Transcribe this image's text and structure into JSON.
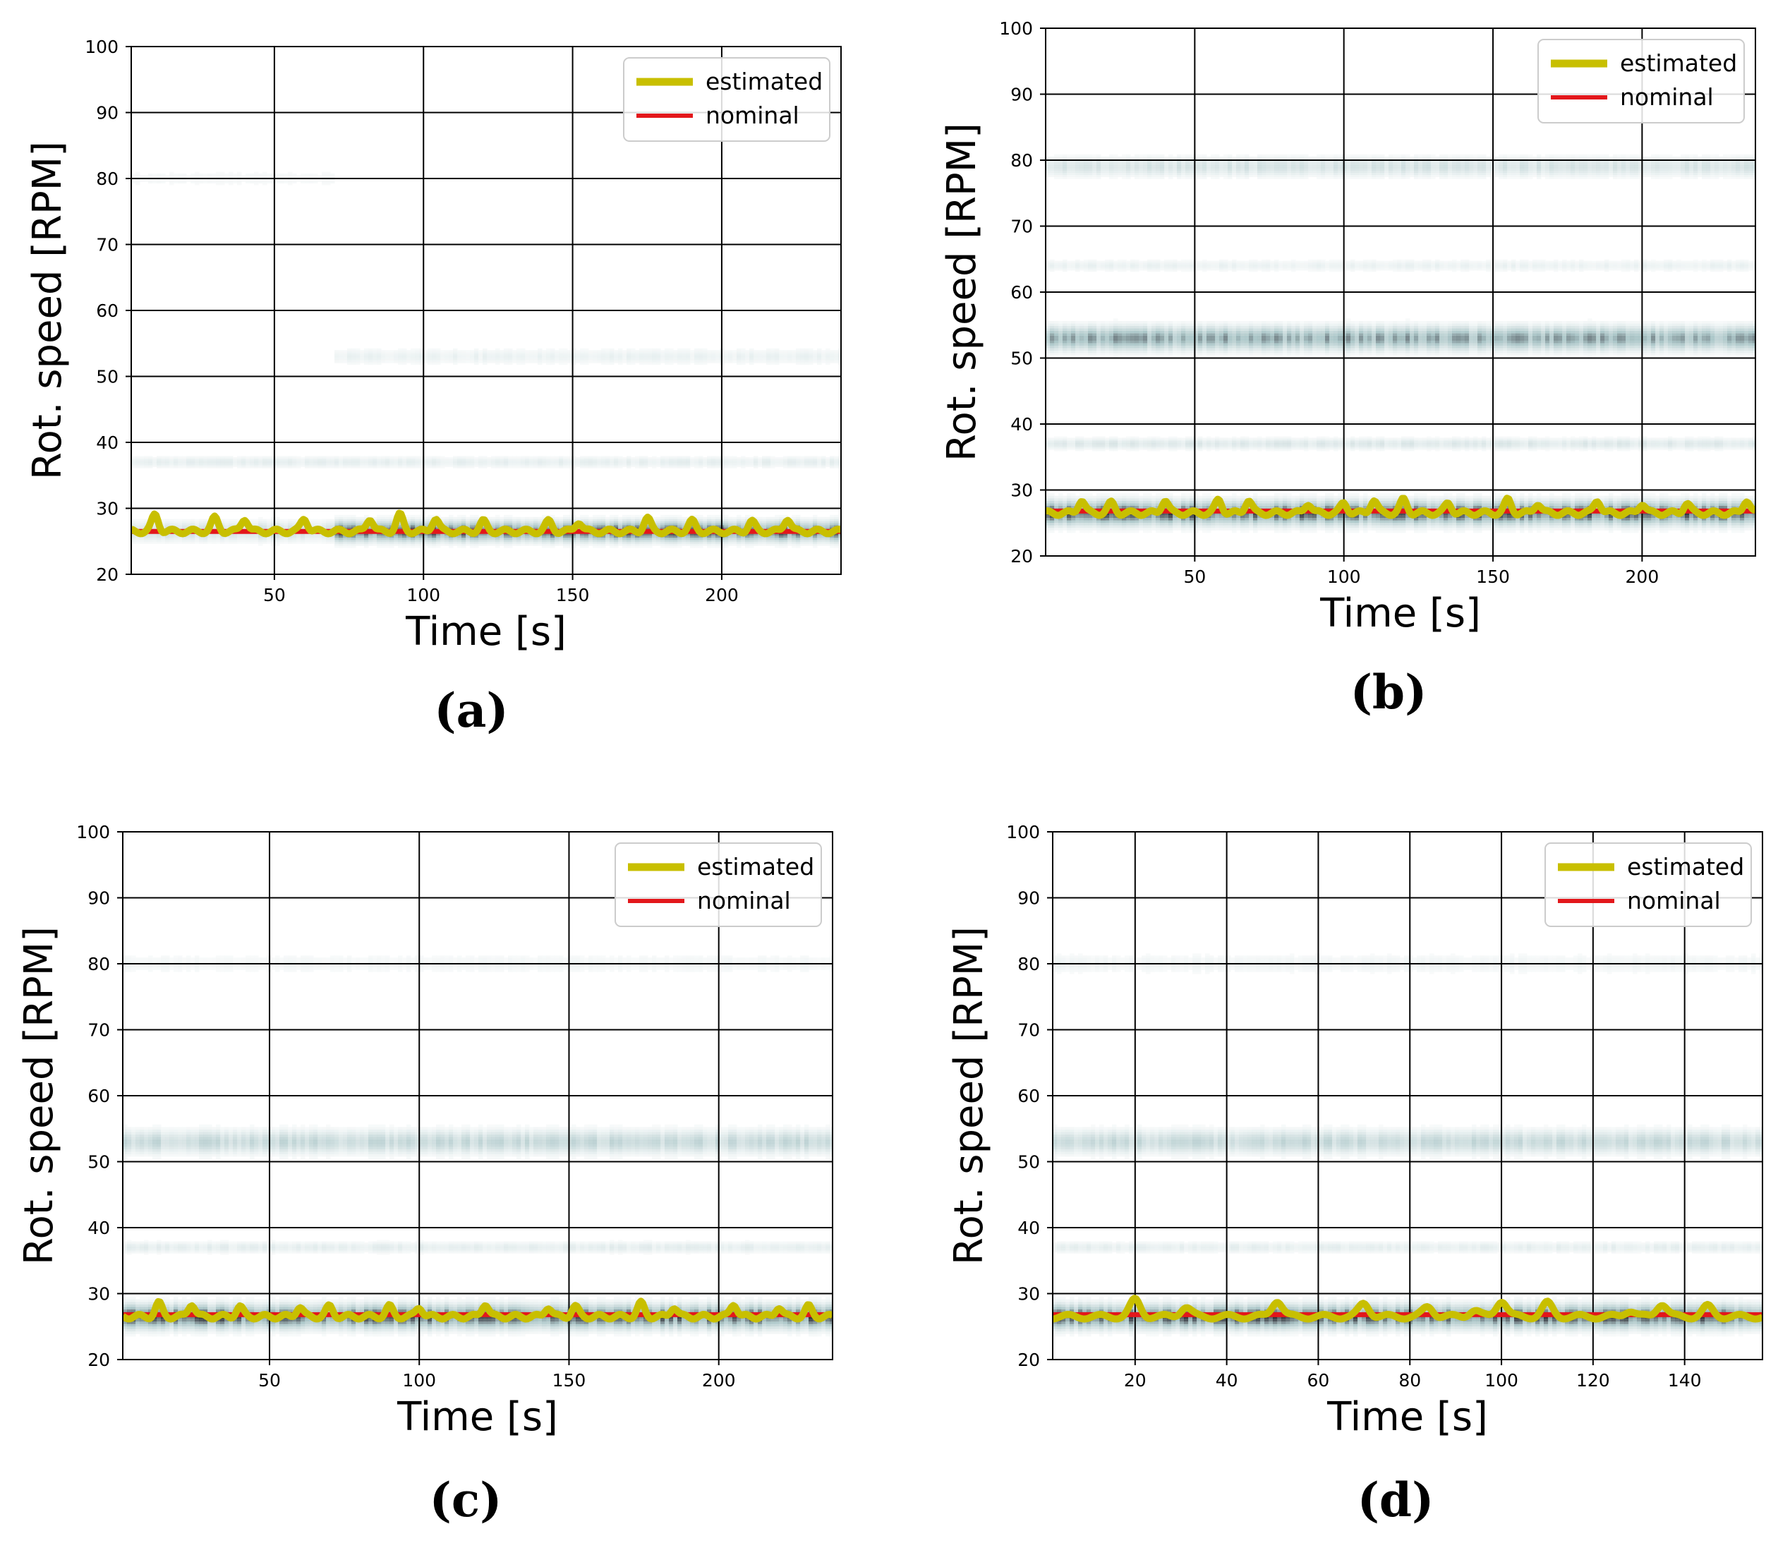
{
  "figure": {
    "xlabel": "Time [s]",
    "ylabel": "Rot. speed [RPM]"
  },
  "colors": {
    "estimated": "#c8bf00",
    "nominal": "#e3171b",
    "spectrogram_dark": "#15121c",
    "spectrogram_light": "#b9d0d2",
    "grid": "#000000"
  },
  "chart_data": [
    {
      "id": "a",
      "caption": "(a)",
      "type": "heatmap",
      "xlabel": "Time [s]",
      "ylabel": "Rot. speed [RPM]",
      "xlim": [
        2,
        240
      ],
      "ylim": [
        20,
        100
      ],
      "xticks": [
        50,
        100,
        150,
        200
      ],
      "xtick_labels": [
        "50",
        "100",
        "150",
        "200"
      ],
      "yticks": [
        20,
        30,
        40,
        50,
        60,
        70,
        80,
        90,
        100
      ],
      "ytick_labels": [
        "20",
        "30",
        "40",
        "50",
        "60",
        "70",
        "80",
        "90",
        "100"
      ],
      "grid": true,
      "legend": {
        "position": "top-right",
        "entries": [
          "estimated",
          "nominal"
        ]
      },
      "bands": [
        {
          "rpm": 26.5,
          "intensity": 0.95,
          "width": 5,
          "t_start": 70
        },
        {
          "rpm": 26.5,
          "intensity": 0.35,
          "width": 5,
          "t_end": 70
        },
        {
          "rpm": 37,
          "intensity": 0.18,
          "width": 3
        },
        {
          "rpm": 53,
          "intensity": 0.15,
          "width": 4,
          "t_start": 70
        },
        {
          "rpm": 80,
          "intensity": 0.08,
          "width": 4,
          "t_end": 70
        }
      ],
      "series": [
        {
          "name": "nominal",
          "values": [
            {
              "x": 2,
              "y": 26.5
            },
            {
              "x": 240,
              "y": 26.5
            }
          ]
        },
        {
          "name": "estimated",
          "mean": 26.5,
          "peak_times": [
            10,
            30,
            40,
            60,
            82,
            92,
            104,
            120,
            142,
            152,
            175,
            190,
            210,
            222
          ],
          "peak_values": [
            29.0,
            28.5,
            28.5,
            28.5,
            28.5,
            29.0,
            28.5,
            28.0,
            28.0,
            28.0,
            28.5,
            28.0,
            28.0,
            28.5
          ]
        }
      ]
    },
    {
      "id": "b",
      "caption": "(b)",
      "type": "heatmap",
      "xlabel": "Time [s]",
      "ylabel": "Rot. speed [RPM]",
      "xlim": [
        0,
        238
      ],
      "ylim": [
        20,
        100
      ],
      "xticks": [
        50,
        100,
        150,
        200
      ],
      "xtick_labels": [
        "50",
        "100",
        "150",
        "200"
      ],
      "yticks": [
        20,
        30,
        40,
        50,
        60,
        70,
        80,
        90,
        100
      ],
      "ytick_labels": [
        "20",
        "30",
        "40",
        "50",
        "60",
        "70",
        "80",
        "90",
        "100"
      ],
      "grid": true,
      "legend": {
        "position": "top-right",
        "entries": [
          "estimated",
          "nominal"
        ]
      },
      "bands": [
        {
          "rpm": 26.5,
          "intensity": 0.95,
          "width": 6
        },
        {
          "rpm": 37,
          "intensity": 0.25,
          "width": 3
        },
        {
          "rpm": 53,
          "intensity": 0.7,
          "width": 6
        },
        {
          "rpm": 64,
          "intensity": 0.15,
          "width": 3
        },
        {
          "rpm": 79,
          "intensity": 0.3,
          "width": 5
        }
      ],
      "series": [
        {
          "name": "nominal",
          "values": [
            {
              "x": 0,
              "y": 26.8
            },
            {
              "x": 238,
              "y": 26.8
            }
          ]
        },
        {
          "name": "estimated",
          "mean": 26.5,
          "peak_times": [
            12,
            22,
            40,
            58,
            68,
            88,
            100,
            110,
            120,
            135,
            155,
            165,
            185,
            200,
            215,
            235
          ],
          "peak_values": [
            28.5,
            28.0,
            28.5,
            28.5,
            28.5,
            28.0,
            28.0,
            28.5,
            28.5,
            28.0,
            28.5,
            28.0,
            28.5,
            28.0,
            28.0,
            28.5
          ]
        }
      ]
    },
    {
      "id": "c",
      "caption": "(c)",
      "type": "heatmap",
      "xlabel": "Time [s]",
      "ylabel": "Rot. speed [RPM]",
      "xlim": [
        1,
        238
      ],
      "ylim": [
        20,
        100
      ],
      "xticks": [
        50,
        100,
        150,
        200
      ],
      "xtick_labels": [
        "50",
        "100",
        "150",
        "200"
      ],
      "yticks": [
        20,
        30,
        40,
        50,
        60,
        70,
        80,
        90,
        100
      ],
      "ytick_labels": [
        "20",
        "30",
        "40",
        "50",
        "60",
        "70",
        "80",
        "90",
        "100"
      ],
      "grid": true,
      "legend": {
        "position": "top-right",
        "entries": [
          "estimated",
          "nominal"
        ]
      },
      "bands": [
        {
          "rpm": 26.5,
          "intensity": 0.95,
          "width": 6
        },
        {
          "rpm": 37,
          "intensity": 0.2,
          "width": 3
        },
        {
          "rpm": 53,
          "intensity": 0.4,
          "width": 6
        },
        {
          "rpm": 80,
          "intensity": 0.1,
          "width": 5
        }
      ],
      "series": [
        {
          "name": "nominal",
          "values": [
            {
              "x": 1,
              "y": 26.8
            },
            {
              "x": 238,
              "y": 26.8
            }
          ]
        },
        {
          "name": "estimated",
          "mean": 26.5,
          "peak_times": [
            13,
            24,
            40,
            60,
            70,
            90,
            100,
            122,
            143,
            152,
            174,
            185,
            205,
            220,
            230
          ],
          "peak_values": [
            28.5,
            28.5,
            28.0,
            28.0,
            28.0,
            28.0,
            28.0,
            28.5,
            28.0,
            28.0,
            28.5,
            28.0,
            28.5,
            28.0,
            28.0
          ]
        }
      ]
    },
    {
      "id": "d",
      "caption": "(d)",
      "type": "heatmap",
      "xlabel": "Time [s]",
      "ylabel": "Rot. speed [RPM]",
      "xlim": [
        2,
        157
      ],
      "ylim": [
        20,
        100
      ],
      "xticks": [
        20,
        40,
        60,
        80,
        100,
        120,
        140
      ],
      "xtick_labels": [
        "20",
        "40",
        "60",
        "80",
        "100",
        "120",
        "140"
      ],
      "yticks": [
        20,
        30,
        40,
        50,
        60,
        70,
        80,
        90,
        100
      ],
      "ytick_labels": [
        "20",
        "30",
        "40",
        "50",
        "60",
        "70",
        "80",
        "90",
        "100"
      ],
      "grid": true,
      "legend": {
        "position": "top-right",
        "entries": [
          "estimated",
          "nominal"
        ]
      },
      "bands": [
        {
          "rpm": 26.5,
          "intensity": 0.95,
          "width": 6
        },
        {
          "rpm": 37,
          "intensity": 0.18,
          "width": 3
        },
        {
          "rpm": 53,
          "intensity": 0.4,
          "width": 6
        },
        {
          "rpm": 80,
          "intensity": 0.12,
          "width": 5
        }
      ],
      "series": [
        {
          "name": "nominal",
          "values": [
            {
              "x": 2,
              "y": 26.8
            },
            {
              "x": 157,
              "y": 26.8
            }
          ]
        },
        {
          "name": "estimated",
          "mean": 26.5,
          "peak_times": [
            20,
            31,
            51,
            70,
            84,
            94,
            100,
            110,
            128,
            135,
            145
          ],
          "peak_values": [
            29.0,
            28.0,
            29.0,
            28.5,
            28.0,
            27.5,
            29.0,
            28.5,
            27.5,
            28.5,
            28.0
          ]
        }
      ]
    }
  ]
}
